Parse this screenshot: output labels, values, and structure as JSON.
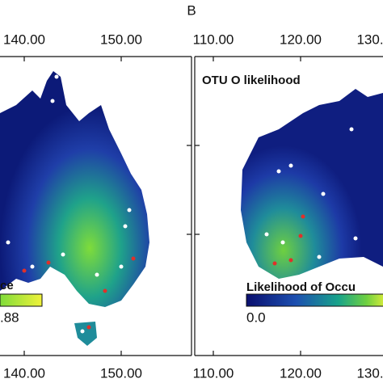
{
  "panel_label": "B",
  "left_panel": {
    "top_ticks": [
      "140.00",
      "150.00"
    ],
    "bottom_ticks": [
      "140.00",
      "150.00"
    ],
    "legend_title": "ce",
    "legend_max": ".88"
  },
  "right_panel": {
    "top_ticks": [
      "110.00",
      "120.00",
      "130."
    ],
    "bottom_ticks": [
      "110.00",
      "120.00",
      "130."
    ],
    "title": "OTU O likelihood",
    "legend_title": "Likelihood of Occu",
    "legend_min": "0.0"
  }
}
